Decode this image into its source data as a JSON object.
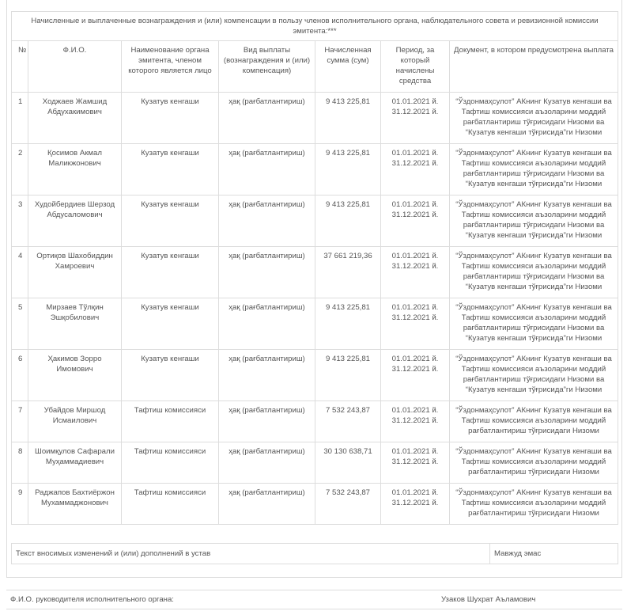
{
  "table": {
    "title": "Начисленные и выплаченные вознаграждения и (или) компенсации в пользу членов исполнительного органа, наблюдательного совета и ревизионной комиссии эмитента:***",
    "headers": [
      "№",
      "Ф.И.О.",
      "Наименование органа эмитента, членом которого является лицо",
      "Вид выплаты (вознаграждения и (или) компенсация)",
      "Начисленная сумма (сум)",
      "Период, за который начислены средства",
      "Документ, в котором предусмотрена выплата"
    ],
    "rows": [
      {
        "n": "1",
        "name": "Ходжаев Жамшид Абдухакимович",
        "org": "Кузатув кенгаши",
        "type": "ҳақ (рағбатлантириш)",
        "sum": "9 413 225,81",
        "p1": "01.01.2021 й.",
        "p2": "31.12.2021 й.",
        "doc": "“Ўздонмаҳсулот” АКнинг Кузатув кенгаши ва Тафтиш комиссияси аъзоларини моддий рағбатлантириш тўғрисидаги Низоми ва “Кузатув кенгаши тўғрисида”ги Низоми"
      },
      {
        "n": "2",
        "name": "Қосимов Акмал Маликжонович",
        "org": "Кузатув кенгаши",
        "type": "ҳақ (рағбатлантириш)",
        "sum": "9 413 225,81",
        "p1": "01.01.2021 й.",
        "p2": "31.12.2021 й.",
        "doc": "“Ўздонмаҳсулот” АКнинг Кузатув кенгаши ва Тафтиш комиссияси аъзоларини моддий рағбатлантириш тўғрисидаги Низоми ва “Кузатув кенгаши тўғрисида”ги Низоми"
      },
      {
        "n": "3",
        "name": "Худойбердиев Шерзод Абдусаломович",
        "org": "Кузатув кенгаши",
        "type": "ҳақ (рағбатлантириш)",
        "sum": "9 413 225,81",
        "p1": "01.01.2021 й.",
        "p2": "31.12.2021 й.",
        "doc": "“Ўздонмаҳсулот” АКнинг Кузатув кенгаши ва Тафтиш комиссияси аъзоларини моддий рағбатлантириш тўғрисидаги Низоми ва “Кузатув кенгаши тўғрисида”ги Низоми"
      },
      {
        "n": "4",
        "name": "Ортиқов Шахобиддин Хамроевич",
        "org": "Кузатув кенгаши",
        "type": "ҳақ (рағбатлантириш)",
        "sum": "37 661 219,36",
        "p1": "01.01.2021 й.",
        "p2": "31.12.2021 й.",
        "doc": "“Ўздонмаҳсулот” АКнинг Кузатув кенгаши ва Тафтиш комиссияси аъзоларини моддий рағбатлантириш тўғрисидаги Низоми ва “Кузатув кенгаши тўғрисида”ги Низоми"
      },
      {
        "n": "5",
        "name": "Мирзаев Тўлқин Эшқобилович",
        "org": "Кузатув кенгаши",
        "type": "ҳақ (рағбатлантириш)",
        "sum": "9 413 225,81",
        "p1": "01.01.2021 й.",
        "p2": "31.12.2021 й.",
        "doc": "“Ўздонмаҳсулот” АКнинг Кузатув кенгаши ва Тафтиш комиссияси аъзоларини моддий рағбатлантириш тўғрисидаги Низоми ва “Кузатув кенгаши тўғрисида”ги Низоми"
      },
      {
        "n": "6",
        "name": "Ҳакимов Зорро Имомович",
        "org": "Кузатув кенгаши",
        "type": "ҳақ (рағбатлантириш)",
        "sum": "9 413 225,81",
        "p1": "01.01.2021 й.",
        "p2": "31.12.2021 й.",
        "doc": "“Ўздонмаҳсулот” АКнинг Кузатув кенгаши ва Тафтиш комиссияси аъзоларини моддий рағбатлантириш тўғрисидаги Низоми ва “Кузатув кенгаши тўғрисида”ги Низоми"
      },
      {
        "n": "7",
        "name": "Убайдов Миршод Исмаилович",
        "org": "Тафтиш комиссияси",
        "type": "ҳақ (рағбатлантириш)",
        "sum": "7 532 243,87",
        "p1": "01.01.2021 й.",
        "p2": "31.12.2021 й.",
        "doc": "“Ўздонмаҳсулот” АКнинг Кузатув кенгаши ва Тафтиш комиссияси аъзоларини моддий рағбатлантириш тўғрисидаги Низоми"
      },
      {
        "n": "8",
        "name": "Шоимқулов Сафарали Муҳаммадиевич",
        "org": "Тафтиш комиссияси",
        "type": "ҳақ (рағбатлантириш)",
        "sum": "30 130 638,71",
        "p1": "01.01.2021 й.",
        "p2": "31.12.2021 й.",
        "doc": "“Ўздонмаҳсулот” АКнинг Кузатув кенгаши ва Тафтиш комиссияси аъзоларини моддий рағбатлантириш тўғрисидаги Низоми"
      },
      {
        "n": "9",
        "name": "Раджапов Бахтиёржон Мухаммаджонович",
        "org": "Тафтиш комиссияси",
        "type": "ҳақ (рағбатлантириш)",
        "sum": "7 532 243,87",
        "p1": "01.01.2021 й.",
        "p2": "31.12.2021 й.",
        "doc": "“Ўздонмаҳсулот” АКнинг Кузатув кенгаши ва Тафтиш комиссияси аъзоларини моддий рағбатлантириш тўғрисидаги Низоми"
      }
    ]
  },
  "charter": {
    "label": "Текст вносимых изменений и (или) дополнений в устав",
    "value": "Мавжуд эмас"
  },
  "footer": {
    "label": "Ф.И.О. руководителя исполнительного органа:",
    "value": "Узаков Шухрат Аъламович"
  }
}
